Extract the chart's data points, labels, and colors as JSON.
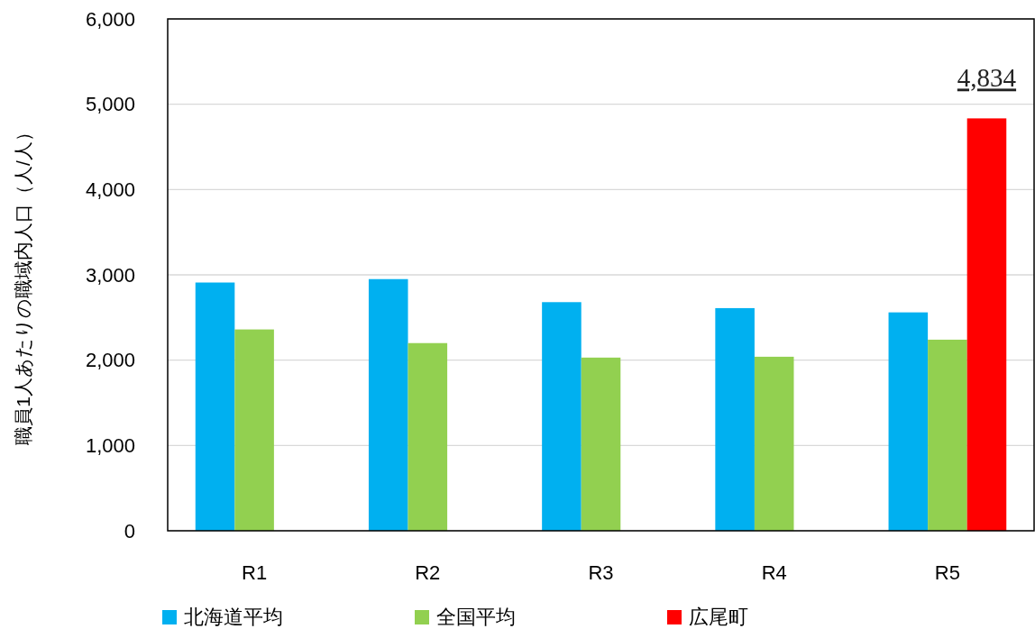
{
  "chart_data": {
    "type": "bar",
    "ylabel": "職員1人あたりの職域内人口（人/人）",
    "categories": [
      "R1",
      "R2",
      "R3",
      "R4",
      "R5"
    ],
    "series": [
      {
        "name": "北海道平均",
        "color": "#00b0f0",
        "values": [
          2910,
          2950,
          2680,
          2610,
          2560
        ]
      },
      {
        "name": "全国平均",
        "color": "#92d050",
        "values": [
          2360,
          2200,
          2030,
          2040,
          2240
        ]
      },
      {
        "name": "広尾町",
        "color": "#ff0000",
        "values": [
          null,
          null,
          null,
          null,
          4834
        ],
        "value_labels": [
          null,
          null,
          null,
          null,
          "4,834"
        ]
      }
    ],
    "ylim": [
      0,
      6000
    ],
    "yticks": [
      {
        "value": 0,
        "label": "0"
      },
      {
        "value": 1000,
        "label": "1,000"
      },
      {
        "value": 2000,
        "label": "2,000"
      },
      {
        "value": 3000,
        "label": "3,000"
      },
      {
        "value": 4000,
        "label": "4,000"
      },
      {
        "value": 5000,
        "label": "5,000"
      },
      {
        "value": 6000,
        "label": "6,000"
      }
    ],
    "grid": "y",
    "legend": "bottom"
  }
}
